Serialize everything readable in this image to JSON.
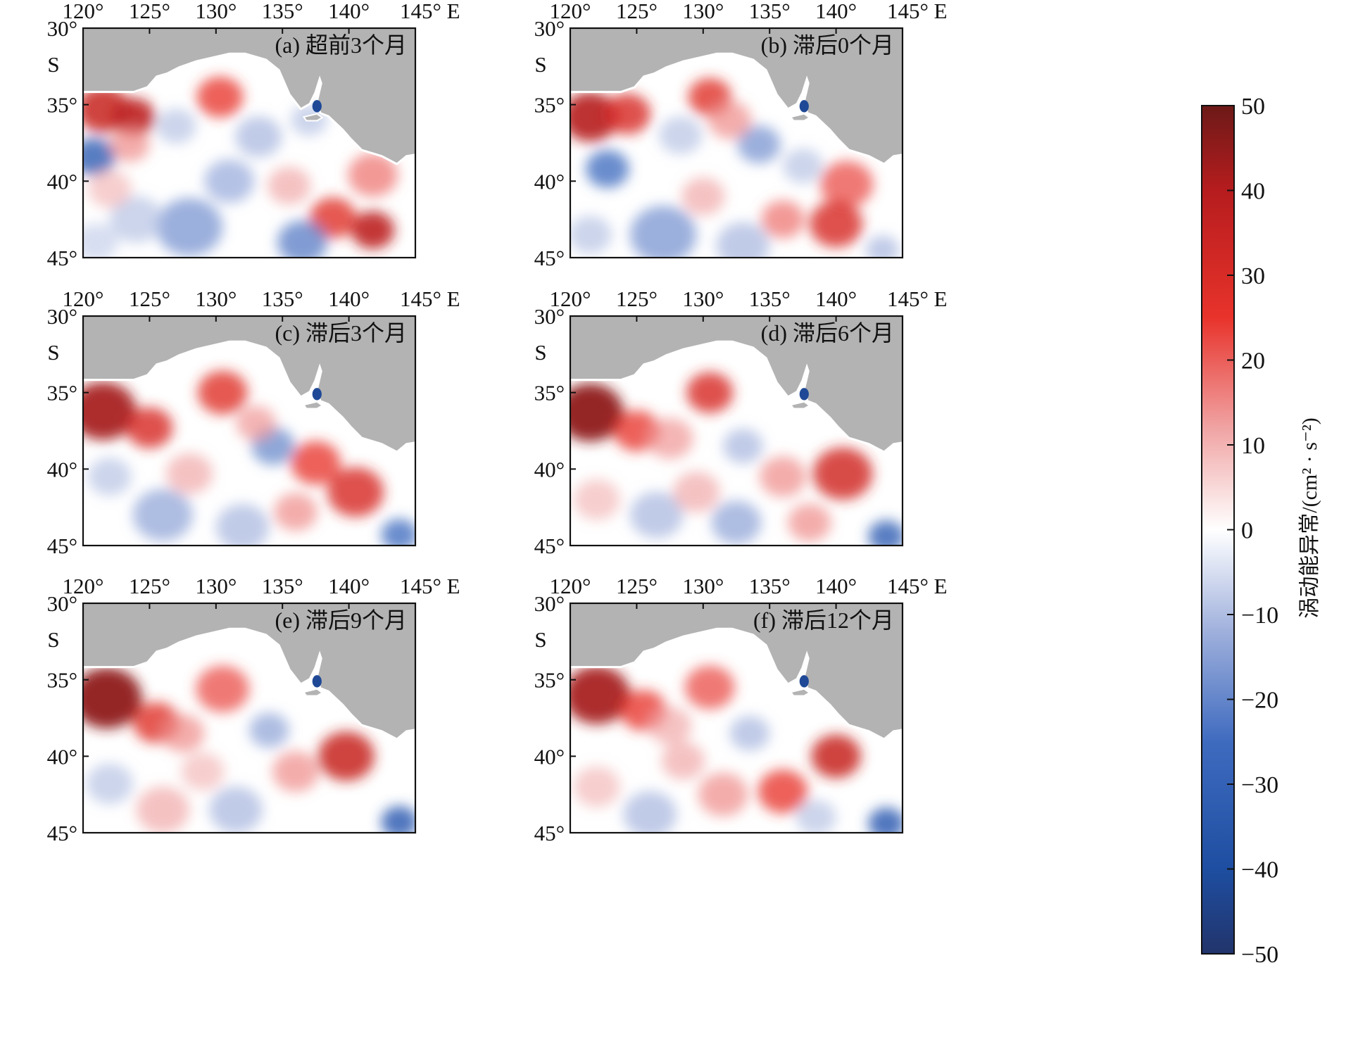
{
  "chart_data": {
    "type": "heatmap",
    "variable_label": "涡动能异常/(cm² · s⁻²)",
    "colorbar": {
      "range": [
        -50,
        50
      ],
      "ticks": [
        50,
        40,
        30,
        20,
        10,
        0,
        -10,
        -20,
        -30,
        -40,
        -50
      ],
      "tick_labels": [
        "50",
        "40",
        "30",
        "20",
        "10",
        "0",
        "−10",
        "−20",
        "−30",
        "−40",
        "−50"
      ],
      "stops": [
        {
          "value": -50,
          "color": "#22346b"
        },
        {
          "value": -40,
          "color": "#1e4ea1"
        },
        {
          "value": -25,
          "color": "#3f6bbf"
        },
        {
          "value": -12,
          "color": "#9fb0dc"
        },
        {
          "value": 0,
          "color": "#ffffff"
        },
        {
          "value": 12,
          "color": "#f0a3a3"
        },
        {
          "value": 25,
          "color": "#e8332b"
        },
        {
          "value": 40,
          "color": "#b61c1e"
        },
        {
          "value": 50,
          "color": "#6c1a18"
        }
      ]
    },
    "land_color": "#b3b3b3",
    "x_axis": {
      "range": [
        120,
        145
      ],
      "ticks": [
        120,
        125,
        130,
        135,
        140,
        145
      ],
      "tick_labels": [
        "120°",
        "125°",
        "130°",
        "135°",
        "140°",
        "145° E"
      ]
    },
    "y_axis": {
      "range": [
        -30,
        -45
      ],
      "ticks": [
        -30,
        -35,
        -40,
        -45
      ],
      "tick_labels": [
        "30°",
        "35°",
        "40°",
        "45°"
      ],
      "hemisphere_label": "S"
    },
    "panels": [
      {
        "id": "a",
        "title": "(a) 超前3个月",
        "blobs": [
          {
            "lon": 121.5,
            "lat": -35.3,
            "value": 35,
            "size": 1.6
          },
          {
            "lon": 123.8,
            "lat": -35.8,
            "value": 38,
            "size": 1.3
          },
          {
            "lon": 120.8,
            "lat": -38.4,
            "value": -30,
            "size": 1.3
          },
          {
            "lon": 123.5,
            "lat": -37.6,
            "value": 15,
            "size": 1.2
          },
          {
            "lon": 130.3,
            "lat": -34.5,
            "value": 25,
            "size": 1.4
          },
          {
            "lon": 127.0,
            "lat": -36.4,
            "value": -10,
            "size": 1.2
          },
          {
            "lon": 133.2,
            "lat": -37.1,
            "value": -12,
            "size": 1.4
          },
          {
            "lon": 141.8,
            "lat": -39.6,
            "value": 18,
            "size": 1.5
          },
          {
            "lon": 141.8,
            "lat": -43.2,
            "value": 38,
            "size": 1.3
          },
          {
            "lon": 138.8,
            "lat": -42.4,
            "value": 28,
            "size": 1.4
          },
          {
            "lon": 128.0,
            "lat": -43.0,
            "value": -18,
            "size": 2.0
          },
          {
            "lon": 136.5,
            "lat": -44.0,
            "value": -22,
            "size": 1.5
          },
          {
            "lon": 124.0,
            "lat": -42.5,
            "value": -10,
            "size": 1.6
          },
          {
            "lon": 131.0,
            "lat": -40.0,
            "value": -14,
            "size": 1.5
          },
          {
            "lon": 135.5,
            "lat": -40.3,
            "value": 12,
            "size": 1.3
          },
          {
            "lon": 137.0,
            "lat": -36.0,
            "value": -10,
            "size": 1.1
          },
          {
            "lon": 122.0,
            "lat": -40.5,
            "value": 10,
            "size": 1.3
          },
          {
            "lon": 121.0,
            "lat": -44.0,
            "value": -8,
            "size": 1.3
          }
        ]
      },
      {
        "id": "b",
        "title": "(b) 滞后0个月",
        "blobs": [
          {
            "lon": 121.5,
            "lat": -35.8,
            "value": 40,
            "size": 1.7
          },
          {
            "lon": 124.3,
            "lat": -35.6,
            "value": 30,
            "size": 1.4
          },
          {
            "lon": 122.8,
            "lat": -39.2,
            "value": -25,
            "size": 1.3
          },
          {
            "lon": 130.5,
            "lat": -34.5,
            "value": 28,
            "size": 1.3
          },
          {
            "lon": 128.3,
            "lat": -37.0,
            "value": -10,
            "size": 1.3
          },
          {
            "lon": 134.2,
            "lat": -37.6,
            "value": -18,
            "size": 1.3
          },
          {
            "lon": 132.0,
            "lat": -36.0,
            "value": 15,
            "size": 1.3
          },
          {
            "lon": 140.8,
            "lat": -40.2,
            "value": 22,
            "size": 1.6
          },
          {
            "lon": 140.0,
            "lat": -42.8,
            "value": 30,
            "size": 1.6
          },
          {
            "lon": 136.0,
            "lat": -42.5,
            "value": 18,
            "size": 1.3
          },
          {
            "lon": 127.0,
            "lat": -43.5,
            "value": -18,
            "size": 2.0
          },
          {
            "lon": 133.0,
            "lat": -44.2,
            "value": -12,
            "size": 1.6
          },
          {
            "lon": 130.0,
            "lat": -41.0,
            "value": 12,
            "size": 1.3
          },
          {
            "lon": 137.5,
            "lat": -39.0,
            "value": -10,
            "size": 1.2
          },
          {
            "lon": 121.5,
            "lat": -43.5,
            "value": -10,
            "size": 1.3
          },
          {
            "lon": 143.5,
            "lat": -44.5,
            "value": -12,
            "size": 1.0
          }
        ]
      },
      {
        "id": "c",
        "title": "(c) 滞后3个月",
        "blobs": [
          {
            "lon": 121.5,
            "lat": -36.2,
            "value": 42,
            "size": 2.0
          },
          {
            "lon": 125.0,
            "lat": -37.3,
            "value": 30,
            "size": 1.4
          },
          {
            "lon": 130.5,
            "lat": -35.0,
            "value": 28,
            "size": 1.5
          },
          {
            "lon": 134.3,
            "lat": -38.5,
            "value": -20,
            "size": 1.3
          },
          {
            "lon": 137.5,
            "lat": -39.6,
            "value": 25,
            "size": 1.5
          },
          {
            "lon": 140.5,
            "lat": -41.5,
            "value": 30,
            "size": 1.7
          },
          {
            "lon": 143.8,
            "lat": -44.3,
            "value": -25,
            "size": 1.1
          },
          {
            "lon": 126.0,
            "lat": -43.0,
            "value": -15,
            "size": 1.8
          },
          {
            "lon": 132.0,
            "lat": -43.8,
            "value": -12,
            "size": 1.6
          },
          {
            "lon": 128.0,
            "lat": -40.3,
            "value": 12,
            "size": 1.4
          },
          {
            "lon": 122.0,
            "lat": -40.5,
            "value": -10,
            "size": 1.3
          },
          {
            "lon": 136.0,
            "lat": -42.8,
            "value": 15,
            "size": 1.3
          },
          {
            "lon": 133.0,
            "lat": -37.0,
            "value": 14,
            "size": 1.2
          }
        ]
      },
      {
        "id": "d",
        "title": "(d) 滞后6个月",
        "blobs": [
          {
            "lon": 121.5,
            "lat": -36.3,
            "value": 45,
            "size": 2.0
          },
          {
            "lon": 125.0,
            "lat": -37.5,
            "value": 25,
            "size": 1.4
          },
          {
            "lon": 130.5,
            "lat": -35.0,
            "value": 30,
            "size": 1.4
          },
          {
            "lon": 127.5,
            "lat": -38.0,
            "value": 14,
            "size": 1.4
          },
          {
            "lon": 140.5,
            "lat": -40.3,
            "value": 32,
            "size": 1.8
          },
          {
            "lon": 136.0,
            "lat": -40.5,
            "value": 15,
            "size": 1.4
          },
          {
            "lon": 143.8,
            "lat": -44.4,
            "value": -30,
            "size": 1.1
          },
          {
            "lon": 126.5,
            "lat": -43.0,
            "value": -12,
            "size": 1.6
          },
          {
            "lon": 133.0,
            "lat": -38.5,
            "value": -12,
            "size": 1.2
          },
          {
            "lon": 132.5,
            "lat": -43.5,
            "value": -15,
            "size": 1.5
          },
          {
            "lon": 129.5,
            "lat": -41.5,
            "value": 12,
            "size": 1.4
          },
          {
            "lon": 122.0,
            "lat": -42.0,
            "value": 10,
            "size": 1.4
          },
          {
            "lon": 138.0,
            "lat": -43.5,
            "value": 15,
            "size": 1.3
          }
        ]
      },
      {
        "id": "e",
        "title": "(e) 滞后9个月",
        "blobs": [
          {
            "lon": 121.8,
            "lat": -36.2,
            "value": 45,
            "size": 2.1
          },
          {
            "lon": 125.5,
            "lat": -37.8,
            "value": 28,
            "size": 1.4
          },
          {
            "lon": 130.5,
            "lat": -35.6,
            "value": 22,
            "size": 1.6
          },
          {
            "lon": 127.5,
            "lat": -38.5,
            "value": 15,
            "size": 1.3
          },
          {
            "lon": 139.8,
            "lat": -40.0,
            "value": 35,
            "size": 1.7
          },
          {
            "lon": 136.0,
            "lat": -41.0,
            "value": 15,
            "size": 1.4
          },
          {
            "lon": 143.8,
            "lat": -44.3,
            "value": -32,
            "size": 1.1
          },
          {
            "lon": 134.0,
            "lat": -38.3,
            "value": -15,
            "size": 1.2
          },
          {
            "lon": 126.0,
            "lat": -43.5,
            "value": 12,
            "size": 1.6
          },
          {
            "lon": 131.5,
            "lat": -43.5,
            "value": -12,
            "size": 1.6
          },
          {
            "lon": 122.0,
            "lat": -41.8,
            "value": -10,
            "size": 1.4
          },
          {
            "lon": 129.0,
            "lat": -41.0,
            "value": 10,
            "size": 1.3
          }
        ]
      },
      {
        "id": "f",
        "title": "(f) 滞后12个月",
        "blobs": [
          {
            "lon": 122.0,
            "lat": -36.0,
            "value": 42,
            "size": 2.0
          },
          {
            "lon": 125.5,
            "lat": -37.0,
            "value": 25,
            "size": 1.4
          },
          {
            "lon": 130.5,
            "lat": -35.5,
            "value": 22,
            "size": 1.5
          },
          {
            "lon": 127.5,
            "lat": -38.0,
            "value": 12,
            "size": 1.3
          },
          {
            "lon": 140.0,
            "lat": -40.0,
            "value": 35,
            "size": 1.5
          },
          {
            "lon": 136.0,
            "lat": -42.3,
            "value": 25,
            "size": 1.5
          },
          {
            "lon": 143.8,
            "lat": -44.4,
            "value": -32,
            "size": 1.1
          },
          {
            "lon": 133.5,
            "lat": -38.5,
            "value": -12,
            "size": 1.2
          },
          {
            "lon": 126.0,
            "lat": -43.8,
            "value": -12,
            "size": 1.6
          },
          {
            "lon": 131.5,
            "lat": -42.5,
            "value": 15,
            "size": 1.5
          },
          {
            "lon": 122.0,
            "lat": -42.0,
            "value": 10,
            "size": 1.4
          },
          {
            "lon": 128.5,
            "lat": -40.3,
            "value": 12,
            "size": 1.3
          },
          {
            "lon": 138.5,
            "lat": -44.0,
            "value": -10,
            "size": 1.2
          }
        ]
      }
    ]
  }
}
